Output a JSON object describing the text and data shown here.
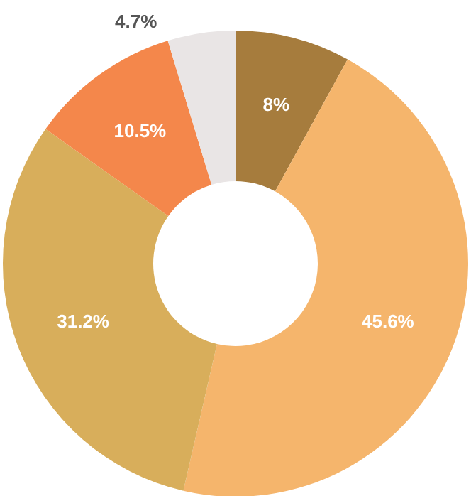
{
  "chart_data": {
    "type": "donut",
    "categories": [
      null,
      null,
      null,
      null,
      null
    ],
    "values": [
      8,
      45.6,
      31.2,
      10.5,
      4.7
    ],
    "colors": [
      "#a67c3d",
      "#f5b56c",
      "#d8ae5b",
      "#f4874b",
      "#e9e5e5"
    ],
    "value_labels": [
      "8%",
      "45.6%",
      "31.2%",
      "10.5%",
      "4.7%"
    ]
  }
}
